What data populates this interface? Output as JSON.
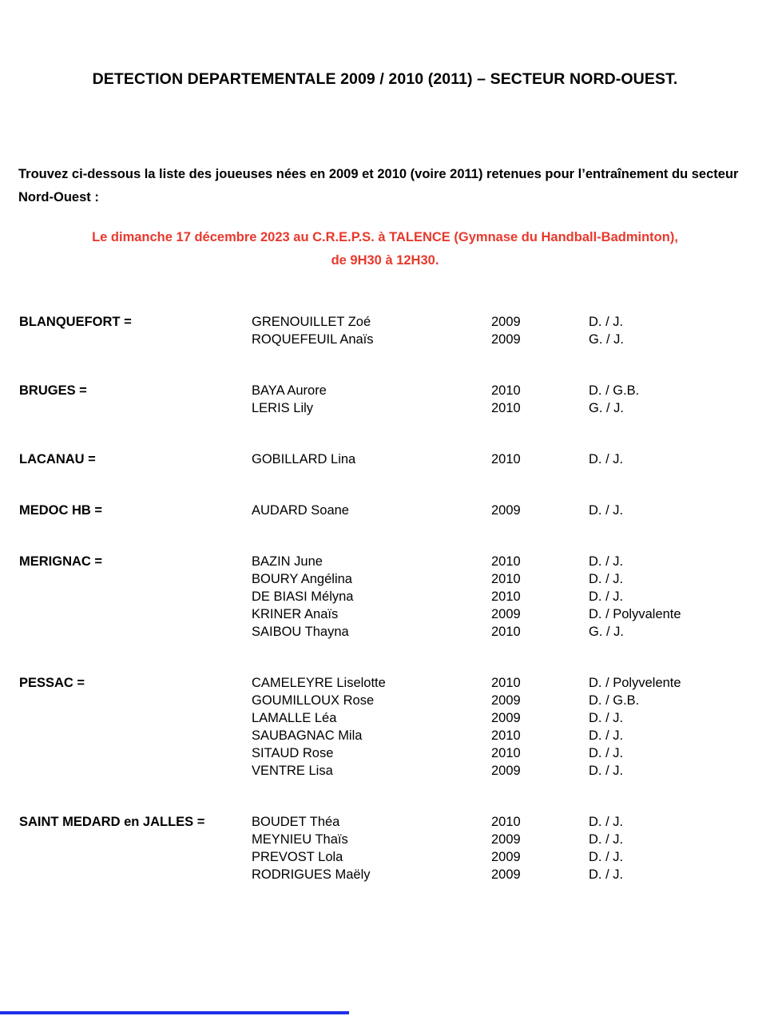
{
  "document": {
    "title": "DETECTION DEPARTEMENTALE 2009 / 2010 (2011) – SECTEUR NORD-OUEST.",
    "intro": "Trouvez ci-dessous la liste des joueuses nées en 2009 et 2010 (voire 2011) retenues pour l’entraînement du secteur Nord-Ouest :",
    "session": {
      "line1": "Le dimanche 17 décembre 2023 au C.R.E.P.S. à TALENCE (Gymnase du Handball-Badminton),",
      "line2": "de 9H30 à 12H30.",
      "color": "#e8392d"
    },
    "footer_line_color": "#2130e8"
  },
  "clubs": [
    {
      "display": "BLANQUEFORT =",
      "players": [
        {
          "name": "GRENOUILLET Zoé",
          "year": "2009",
          "position": "D. / J."
        },
        {
          "name": "ROQUEFEUIL Anaïs",
          "year": "2009",
          "position": "G. / J."
        }
      ]
    },
    {
      "display": "BRUGES =",
      "players": [
        {
          "name": "BAYA Aurore",
          "year": "2010",
          "position": "D. / G.B."
        },
        {
          "name": "LERIS Lily",
          "year": "2010",
          "position": "G. / J."
        }
      ]
    },
    {
      "display": "LACANAU =",
      "players": [
        {
          "name": "GOBILLARD Lina",
          "year": "2010",
          "position": "D. / J."
        }
      ]
    },
    {
      "display": "MEDOC HB =",
      "players": [
        {
          "name": "AUDARD Soane",
          "year": "2009",
          "position": "D. / J."
        }
      ]
    },
    {
      "display": "MERIGNAC =",
      "players": [
        {
          "name": "BAZIN June",
          "year": "2010",
          "position": "D. / J."
        },
        {
          "name": "BOURY Angélina",
          "year": "2010",
          "position": "D. / J."
        },
        {
          "name": "DE BIASI Mélyna",
          "year": "2010",
          "position": "D. / J."
        },
        {
          "name": "KRINER Anaïs",
          "year": "2009",
          "position": "D. / Polyvalente"
        },
        {
          "name": "SAIBOU Thayna",
          "year": "2010",
          "position": "G. / J."
        }
      ]
    },
    {
      "display": "PESSAC =",
      "players": [
        {
          "name": "CAMELEYRE Liselotte",
          "year": "2010",
          "position": "D. / Polyvelente"
        },
        {
          "name": "GOUMILLOUX Rose",
          "year": "2009",
          "position": "D. / G.B."
        },
        {
          "name": "LAMALLE Léa",
          "year": "2009",
          "position": "D. / J."
        },
        {
          "name": "SAUBAGNAC Mila",
          "year": "2010",
          "position": "D. / J."
        },
        {
          "name": "SITAUD Rose",
          "year": "2010",
          "position": "D. / J."
        },
        {
          "name": "VENTRE Lisa",
          "year": "2009",
          "position": "D. / J."
        }
      ]
    },
    {
      "display": "SAINT MEDARD en JALLES =",
      "players": [
        {
          "name": "BOUDET Théa",
          "year": "2010",
          "position": "D. / J."
        },
        {
          "name": "MEYNIEU Thaïs",
          "year": "2009",
          "position": "D. / J."
        },
        {
          "name": "PREVOST Lola",
          "year": "2009",
          "position": "D. / J."
        },
        {
          "name": "RODRIGUES Maëly",
          "year": "2009",
          "position": "D. / J."
        }
      ]
    }
  ]
}
